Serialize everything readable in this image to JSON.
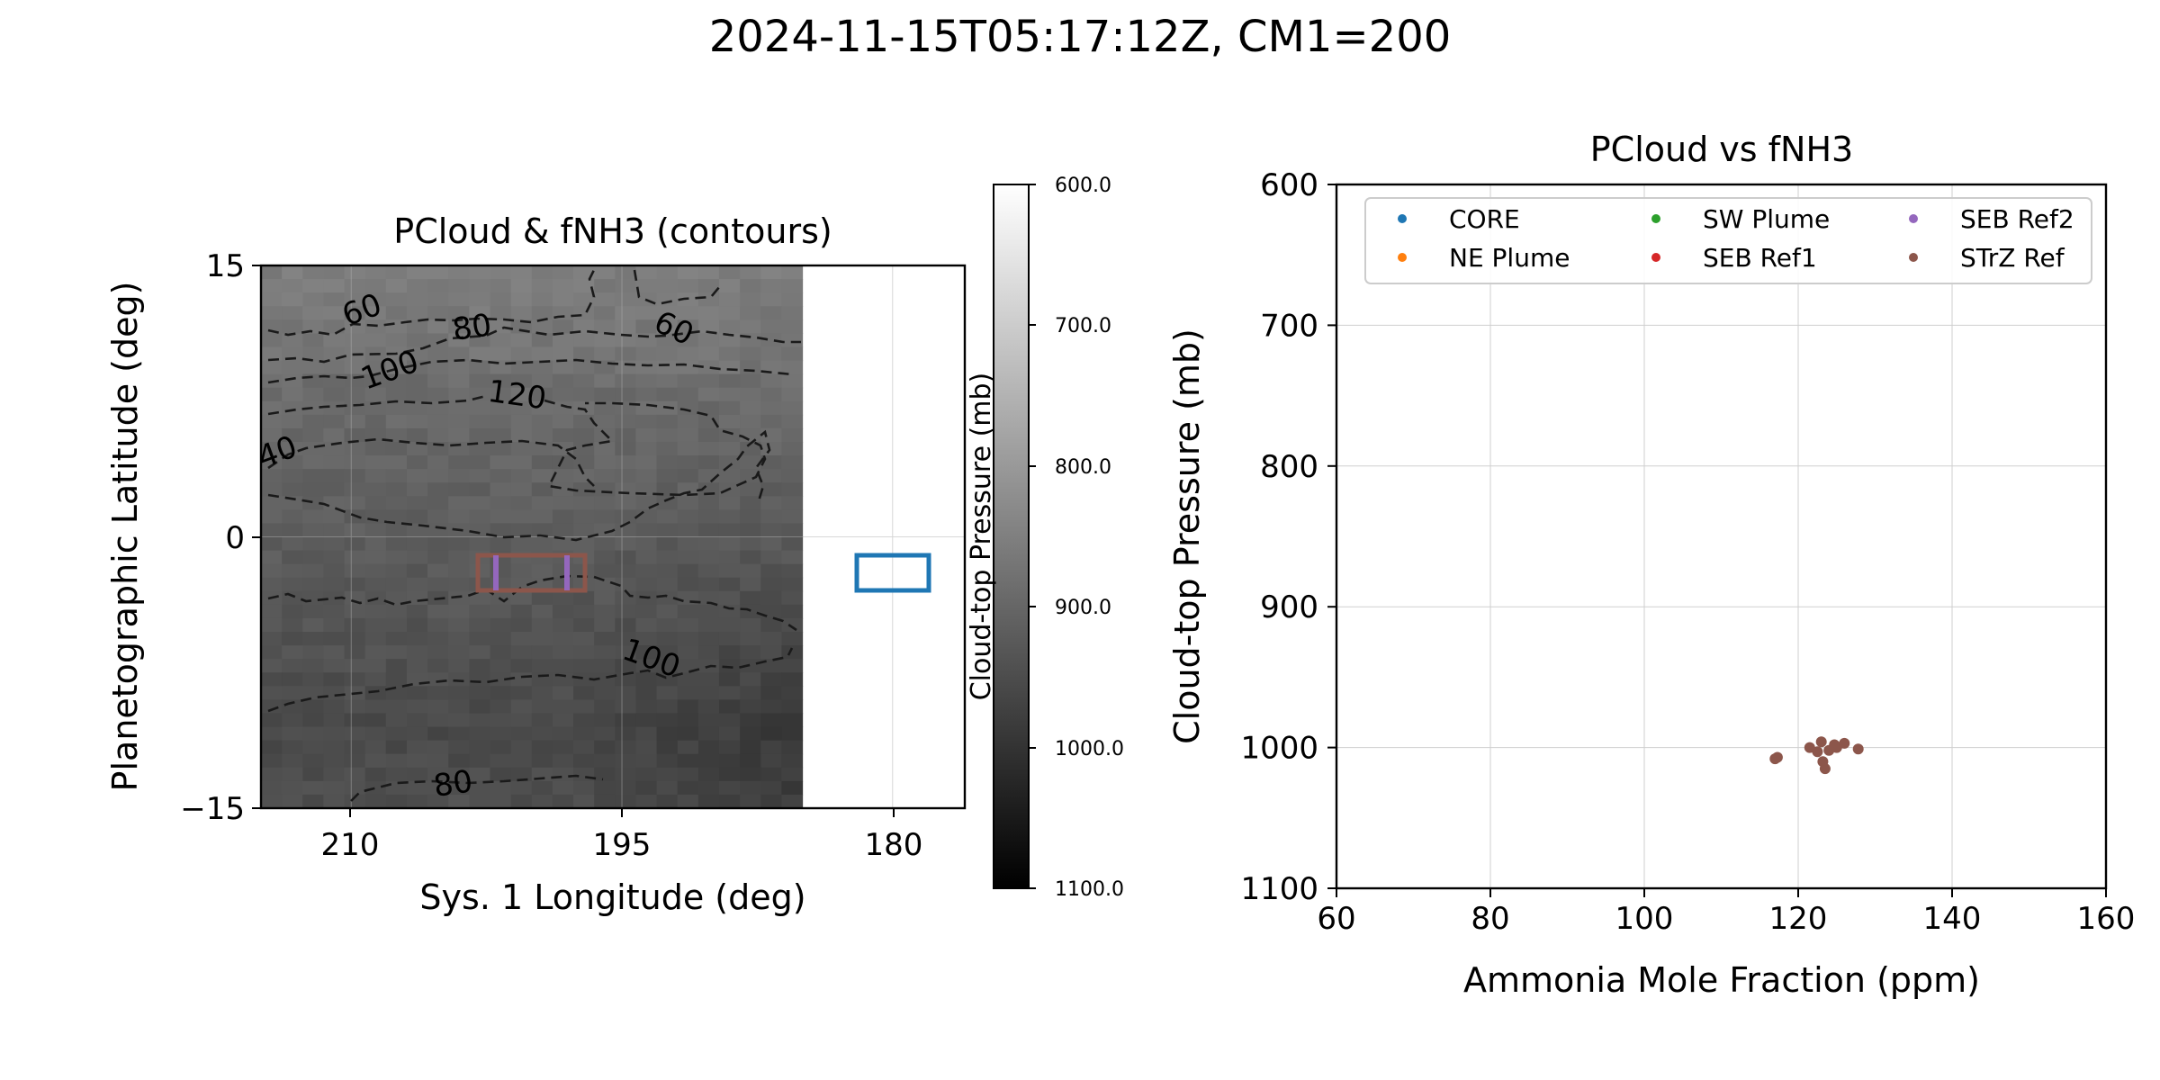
{
  "figure": {
    "suptitle": "2024-11-15T05:17:12Z, CM1=200"
  },
  "left_panel": {
    "title": "PCloud & fNH3 (contours)",
    "xlabel": "Sys. 1 Longitude (deg)",
    "ylabel": "Planetographic Latitude (deg)",
    "xticks": [
      "210",
      "195",
      "180"
    ],
    "yticks": [
      "15",
      "0",
      "−15"
    ],
    "colorbar": {
      "label": "Cloud-top Pressure (mb)",
      "ticks": [
        "600.0",
        "700.0",
        "800.0",
        "900.0",
        "1000.0",
        "1100.0"
      ]
    },
    "contour_labels": [
      "60",
      "80",
      "60",
      "100",
      "120",
      "40",
      "100",
      "80"
    ],
    "region_colors": {
      "core_box": "#1f77b4",
      "strz_box": "#8c564b",
      "seb_ref2": "#9467bd"
    }
  },
  "chart_data": [
    {
      "type": "heatmap",
      "title": "PCloud & fNH3 (contours)",
      "xlabel": "Sys. 1 Longitude (deg)",
      "ylabel": "Planetographic Latitude (deg)",
      "xlim": [
        215,
        176
      ],
      "ylim": [
        -15,
        15
      ],
      "colorbar_range": [
        600,
        1100
      ],
      "colormap": "gray",
      "contour_levels": [
        40,
        60,
        80,
        100,
        120
      ],
      "regions": [
        {
          "name": "CORE",
          "color": "#1f77b4",
          "lon": [
            181,
            177
          ],
          "lat": [
            -3,
            -1
          ]
        },
        {
          "name": "STrZ Ref",
          "color": "#8c564b",
          "lon": [
            203,
            197
          ],
          "lat": [
            -3,
            -1
          ]
        }
      ],
      "grid": true
    },
    {
      "type": "scatter",
      "title": "PCloud vs fNH3",
      "xlabel": "Ammonia Mole Fraction (ppm)",
      "ylabel": "Cloud-top Pressure (mb)",
      "xlim": [
        60,
        160
      ],
      "ylim": [
        1100,
        600
      ],
      "xticks": [
        "60",
        "80",
        "100",
        "120",
        "140",
        "160"
      ],
      "yticks": [
        "600",
        "700",
        "800",
        "900",
        "1000",
        "1100"
      ],
      "grid": true,
      "legend_position": "upper",
      "series": [
        {
          "name": "CORE",
          "color": "#1f77b4",
          "points": []
        },
        {
          "name": "NE Plume",
          "color": "#ff7f0e",
          "points": []
        },
        {
          "name": "SW Plume",
          "color": "#2ca02c",
          "points": []
        },
        {
          "name": "SEB Ref1",
          "color": "#d62728",
          "points": []
        },
        {
          "name": "SEB Ref2",
          "color": "#9467bd",
          "points": []
        },
        {
          "name": "STrZ Ref",
          "color": "#8c564b",
          "points": [
            [
              117,
              1008
            ],
            [
              117.3,
              1007
            ],
            [
              121.5,
              1000
            ],
            [
              122.5,
              1003
            ],
            [
              123,
              996
            ],
            [
              123.2,
              1010
            ],
            [
              123.5,
              1015
            ],
            [
              124,
              1002
            ],
            [
              124.7,
              998
            ],
            [
              125,
              1000
            ],
            [
              126,
              997
            ],
            [
              127.8,
              1001
            ]
          ]
        }
      ]
    }
  ]
}
